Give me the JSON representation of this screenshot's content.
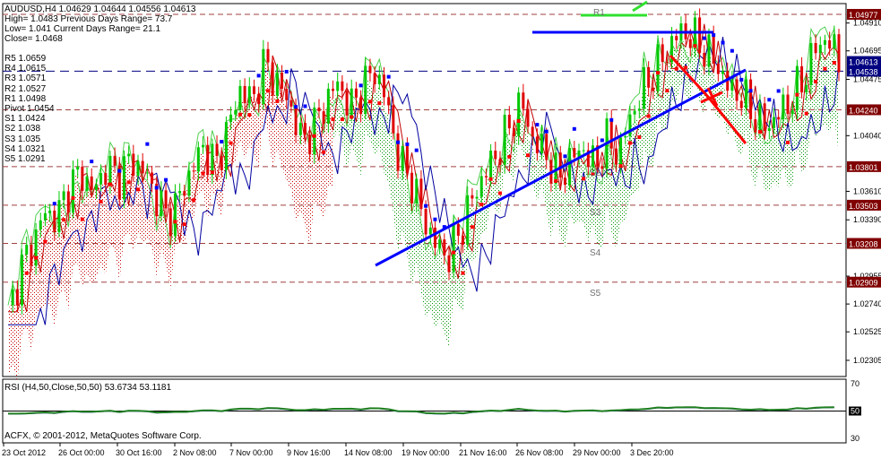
{
  "header": {
    "symbol_line": "AUDUSD,H4  1.04629 1.04644 1.04556 1.04613",
    "high_line": "High= 1.0483    Previous Days Range= 73.7",
    "low_line": "Low= 1.041    Current Days Range= 21.1",
    "close_line": "Close= 1.0468"
  },
  "pivots": [
    {
      "label": "R5 1.0659",
      "price": 1.0659
    },
    {
      "label": "R4 1.0615",
      "price": 1.0615
    },
    {
      "label": "R3 1.0571",
      "price": 1.0571
    },
    {
      "label": "R2 1.0527",
      "price": 1.0527
    },
    {
      "label": "R1 1.0498",
      "price": 1.0498
    },
    {
      "label": "Pivot 1.0454",
      "price": 1.0454
    },
    {
      "label": "S1 1.0424",
      "price": 1.0424
    },
    {
      "label": "S2 1.038",
      "price": 1.038
    },
    {
      "label": "S3 1.035",
      "price": 1.035
    },
    {
      "label": "S4 1.0321",
      "price": 1.0321
    },
    {
      "label": "S5 1.0291",
      "price": 1.0291
    }
  ],
  "level_tags": [
    "R1",
    "S2",
    "S3",
    "S4",
    "S5"
  ],
  "rsi_label": "RSI (H4,50,Close,50,50) 53.6734 53.1181",
  "copyright": "ACFX, © 2001-2012, MetaQuotes Software Corp.",
  "colors": {
    "bull": "#00c800",
    "bear": "#e00000",
    "trend": "#0000ff",
    "signal": "#ff0000",
    "price_box": "#000080",
    "level_box": "#800000"
  },
  "chart_data": {
    "type": "candlestick",
    "symbol": "AUDUSD",
    "timeframe": "H4",
    "ohlc_current": [
      1.04629,
      1.04644,
      1.04556,
      1.04613
    ],
    "y_ticks": [
      1.0491,
      1.04695,
      1.04475,
      1.0404,
      1.0361,
      1.0339,
      1.02955,
      1.0274,
      1.02525,
      1.02305
    ],
    "ylim": [
      1.0218,
      1.0506
    ],
    "x_ticks": [
      "23 Oct 2012",
      "26 Oct 00:00",
      "30 Oct 16:00",
      "2 Nov 08:00",
      "7 Nov 00:00",
      "9 Nov 16:00",
      "14 Nov 08:00",
      "19 Nov 00:00",
      "21 Nov 16:00",
      "26 Nov 08:00",
      "29 Nov 00:00",
      "3 Dec 20:00"
    ],
    "price_tags": [
      {
        "value": "1.04977",
        "kind": "level"
      },
      {
        "value": "1.04613",
        "kind": "current"
      },
      {
        "value": "1.04538",
        "kind": "current"
      },
      {
        "value": "1.04240",
        "kind": "level"
      },
      {
        "value": "1.03801",
        "kind": "level"
      },
      {
        "value": "1.03503",
        "kind": "level"
      },
      {
        "value": "1.03208",
        "kind": "level"
      },
      {
        "value": "1.02909",
        "kind": "level"
      }
    ],
    "horizontal_levels": [
      1.04977,
      1.04538,
      1.0424,
      1.03801,
      1.03503,
      1.03208,
      1.02909
    ],
    "closes": [
      1.0265,
      1.03,
      1.032,
      1.0345,
      1.034,
      1.0365,
      1.0375,
      1.036,
      1.038,
      1.0372,
      1.0385,
      1.0378,
      1.036,
      1.034,
      1.0355,
      1.0378,
      1.0395,
      1.038,
      1.041,
      1.044,
      1.043,
      1.046,
      1.0445,
      1.043,
      1.04,
      1.041,
      1.043,
      1.0445,
      1.0425,
      1.044,
      1.0455,
      1.043,
      1.0385,
      1.037,
      1.034,
      1.032,
      1.031,
      1.033,
      1.0355,
      1.0375,
      1.039,
      1.041,
      1.043,
      1.04,
      1.039,
      1.037,
      1.0385,
      1.0395,
      1.038,
      1.04,
      1.039,
      1.042,
      1.044,
      1.0455,
      1.047,
      1.0485,
      1.048,
      1.047,
      1.046,
      1.044,
      1.0435,
      1.042,
      1.041,
      1.042,
      1.043,
      1.0445,
      1.047,
      1.048,
      1.0462
    ],
    "rsi": {
      "period": 50,
      "values": [
        53.6734,
        53.1181
      ],
      "levels": [
        70,
        50,
        30
      ]
    },
    "rsi_scale": [
      "70",
      "50",
      "30"
    ]
  }
}
